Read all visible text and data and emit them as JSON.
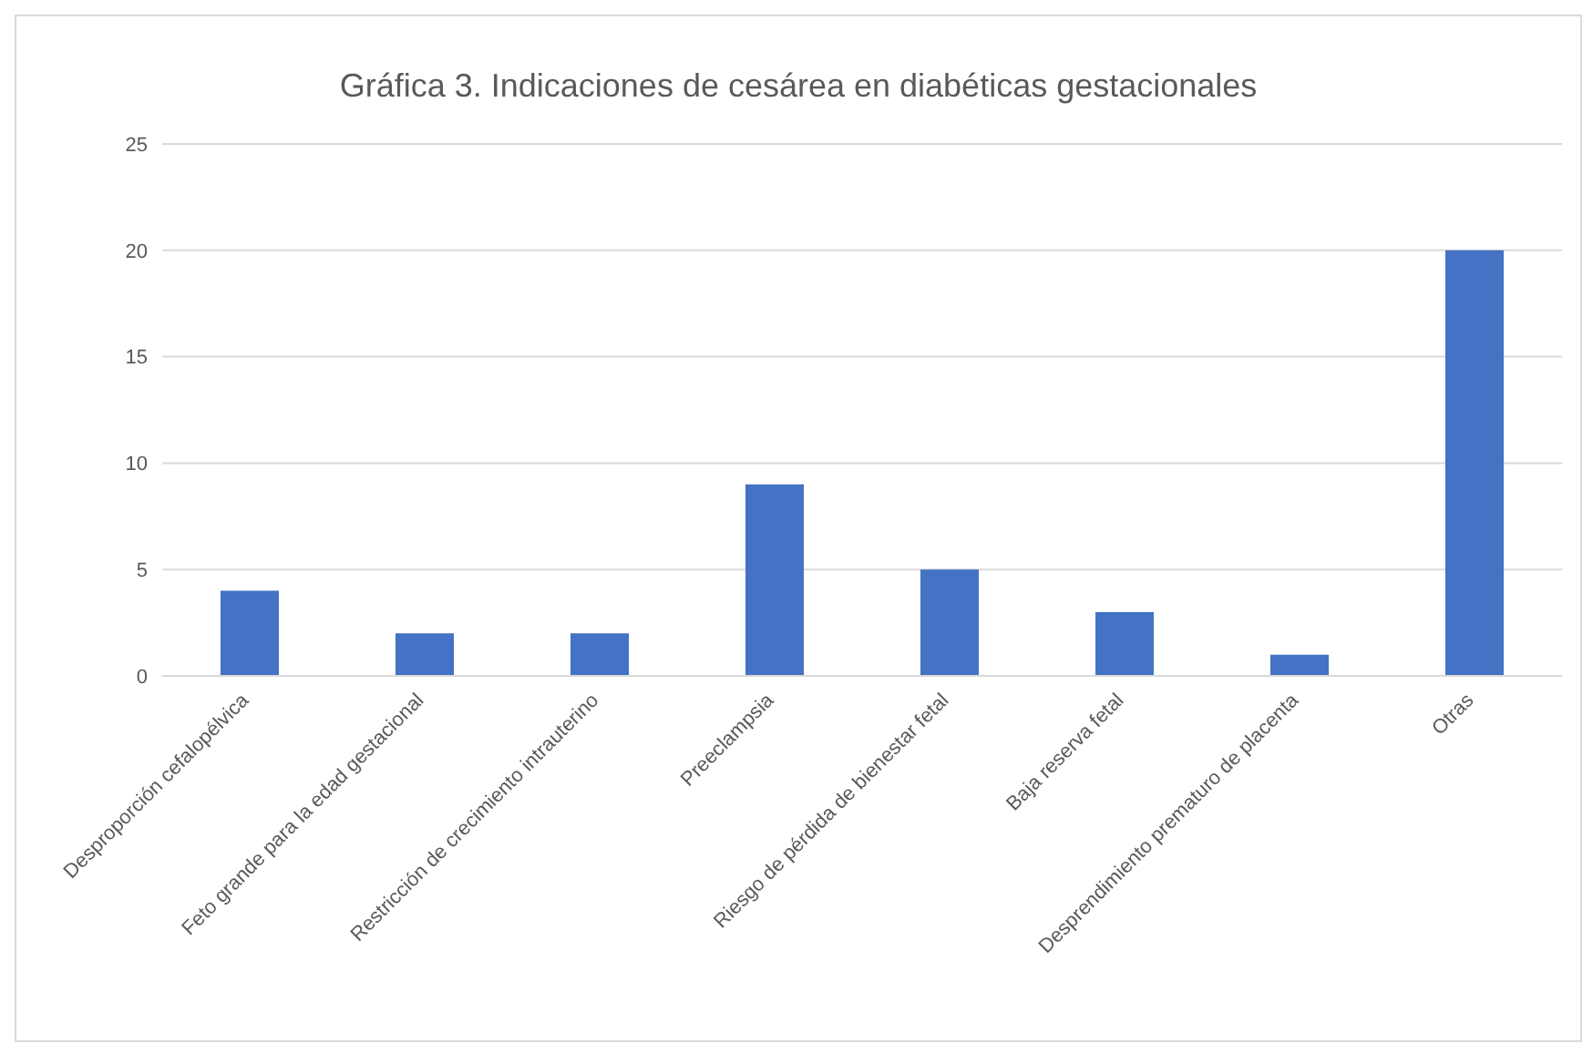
{
  "chart_data": {
    "type": "bar",
    "title": "Gráfica 3. Indicaciones de cesárea en diabéticas gestacionales",
    "categories": [
      "Desproporción cefalopélvica",
      "Feto grande para la edad gestacional",
      "Restricción de crecimiento intrauterino",
      "Preeclampsia",
      "Riesgo de pérdida de bienestar fetal",
      "Baja reserva fetal",
      "Desprendimiento prematuro de placenta",
      "Otras"
    ],
    "values": [
      4,
      2,
      2,
      9,
      5,
      3,
      1,
      20
    ],
    "color": "#4472c4",
    "ylim": [
      0,
      25
    ],
    "yticks": [
      0,
      5,
      10,
      15,
      20,
      25
    ],
    "grid": "y"
  }
}
